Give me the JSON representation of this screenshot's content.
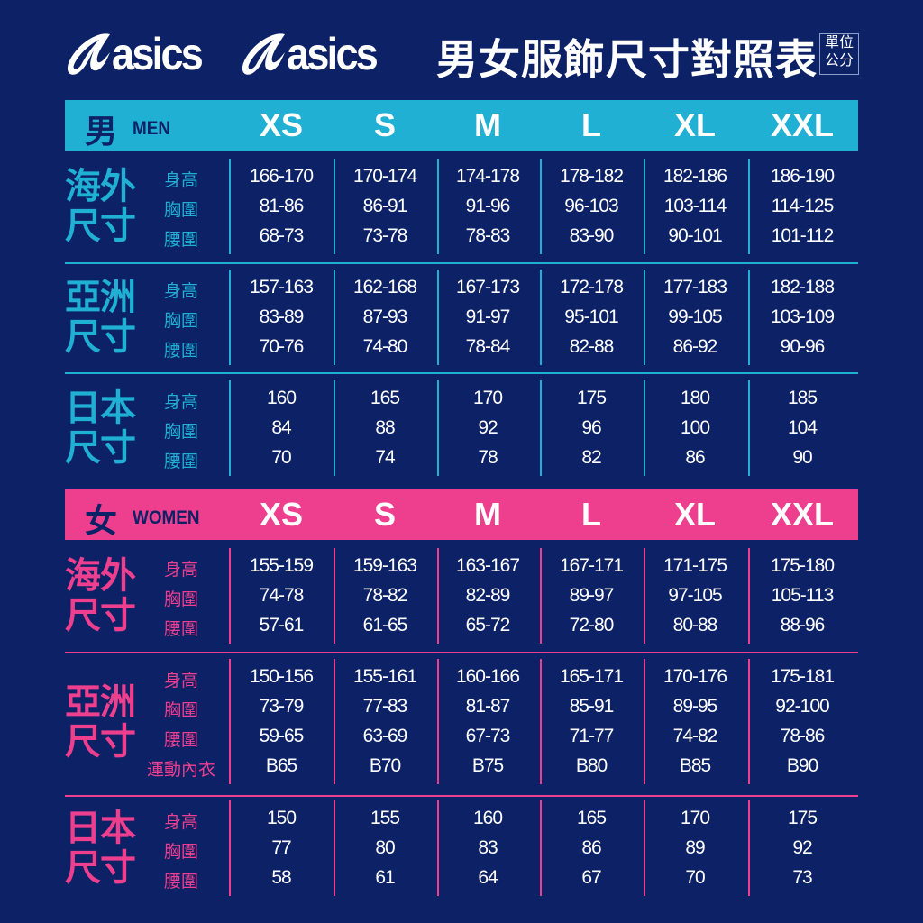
{
  "brand": {
    "logo1": "asics",
    "logo2": "asics"
  },
  "title": "男女服飾尺寸對照表",
  "unit": [
    "單位",
    "公分"
  ],
  "colors": {
    "background": "#0d2266",
    "men": "#1fb0d3",
    "women": "#ee3f8f"
  },
  "sizes": [
    "XS",
    "S",
    "M",
    "L",
    "XL",
    "XXL"
  ],
  "men": {
    "label_zh": "男",
    "label_en": "MEN",
    "sections": [
      {
        "label": [
          "海外",
          "尺寸"
        ],
        "rows": [
          {
            "label": "身高",
            "values": [
              "166-170",
              "170-174",
              "174-178",
              "178-182",
              "182-186",
              "186-190"
            ]
          },
          {
            "label": "胸圍",
            "values": [
              "81-86",
              "86-91",
              "91-96",
              "96-103",
              "103-114",
              "114-125"
            ]
          },
          {
            "label": "腰圍",
            "values": [
              "68-73",
              "73-78",
              "78-83",
              "83-90",
              "90-101",
              "101-112"
            ]
          }
        ]
      },
      {
        "label": [
          "亞洲",
          "尺寸"
        ],
        "rows": [
          {
            "label": "身高",
            "values": [
              "157-163",
              "162-168",
              "167-173",
              "172-178",
              "177-183",
              "182-188"
            ]
          },
          {
            "label": "胸圍",
            "values": [
              "83-89",
              "87-93",
              "91-97",
              "95-101",
              "99-105",
              "103-109"
            ]
          },
          {
            "label": "腰圍",
            "values": [
              "70-76",
              "74-80",
              "78-84",
              "82-88",
              "86-92",
              "90-96"
            ]
          }
        ]
      },
      {
        "label": [
          "日本",
          "尺寸"
        ],
        "rows": [
          {
            "label": "身高",
            "values": [
              "160",
              "165",
              "170",
              "175",
              "180",
              "185"
            ]
          },
          {
            "label": "胸圍",
            "values": [
              "84",
              "88",
              "92",
              "96",
              "100",
              "104"
            ]
          },
          {
            "label": "腰圍",
            "values": [
              "70",
              "74",
              "78",
              "82",
              "86",
              "90"
            ]
          }
        ]
      }
    ]
  },
  "women": {
    "label_zh": "女",
    "label_en": "WOMEN",
    "sections": [
      {
        "label": [
          "海外",
          "尺寸"
        ],
        "rows": [
          {
            "label": "身高",
            "values": [
              "155-159",
              "159-163",
              "163-167",
              "167-171",
              "171-175",
              "175-180"
            ]
          },
          {
            "label": "胸圍",
            "values": [
              "74-78",
              "78-82",
              "82-89",
              "89-97",
              "97-105",
              "105-113"
            ]
          },
          {
            "label": "腰圍",
            "values": [
              "57-61",
              "61-65",
              "65-72",
              "72-80",
              "80-88",
              "88-96"
            ]
          }
        ]
      },
      {
        "label": [
          "亞洲",
          "尺寸"
        ],
        "rows": [
          {
            "label": "身高",
            "values": [
              "150-156",
              "155-161",
              "160-166",
              "165-171",
              "170-176",
              "175-181"
            ]
          },
          {
            "label": "胸圍",
            "values": [
              "73-79",
              "77-83",
              "81-87",
              "85-91",
              "89-95",
              "92-100"
            ]
          },
          {
            "label": "腰圍",
            "values": [
              "59-65",
              "63-69",
              "67-73",
              "71-77",
              "74-82",
              "78-86"
            ]
          },
          {
            "label": "運動內衣",
            "values": [
              "B65",
              "B70",
              "B75",
              "B80",
              "B85",
              "B90"
            ]
          }
        ]
      },
      {
        "label": [
          "日本",
          "尺寸"
        ],
        "rows": [
          {
            "label": "身高",
            "values": [
              "150",
              "155",
              "160",
              "165",
              "170",
              "175"
            ]
          },
          {
            "label": "胸圍",
            "values": [
              "77",
              "80",
              "83",
              "86",
              "89",
              "92"
            ]
          },
          {
            "label": "腰圍",
            "values": [
              "58",
              "61",
              "64",
              "67",
              "70",
              "73"
            ]
          }
        ]
      }
    ]
  }
}
